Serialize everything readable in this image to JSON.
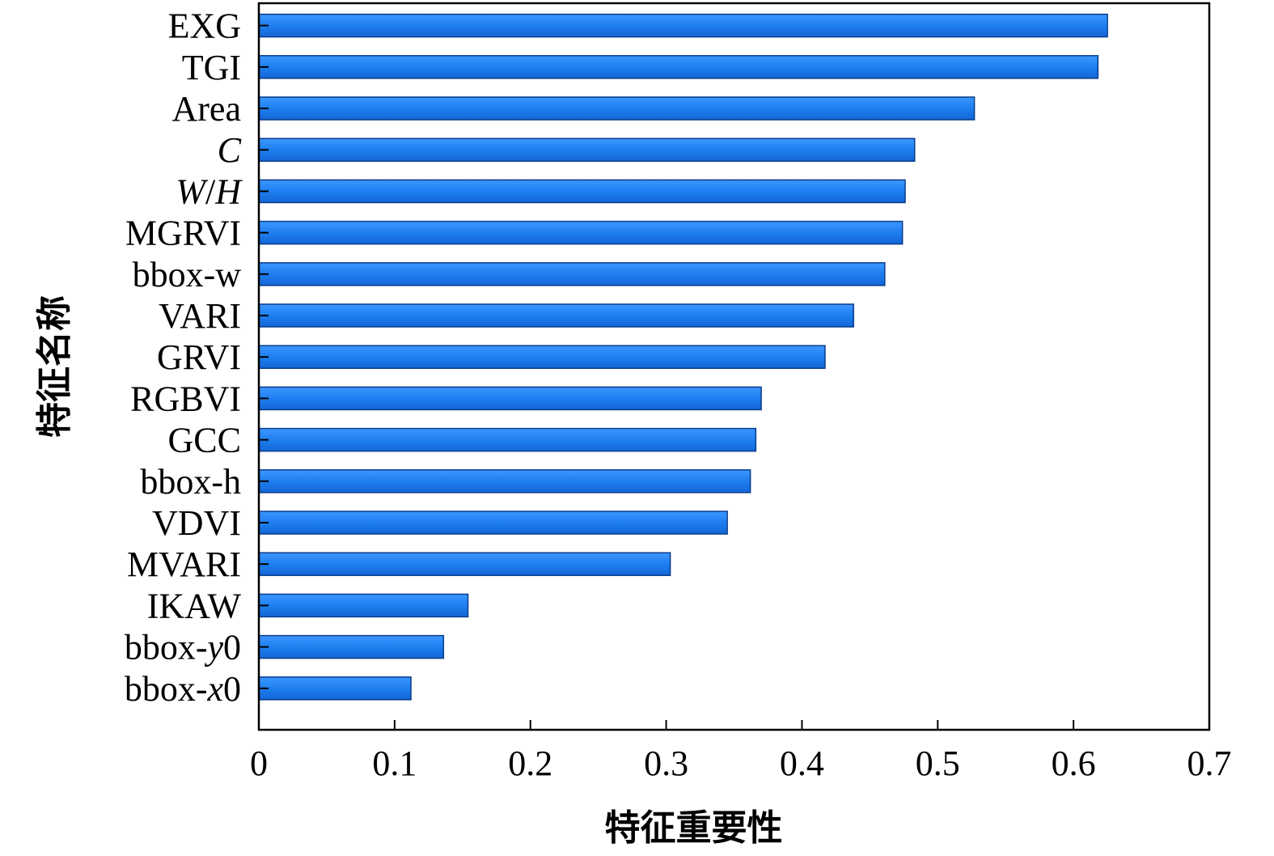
{
  "chart_data": {
    "type": "bar",
    "orientation": "horizontal",
    "categories": [
      "EXG",
      "TGI",
      "Area",
      "C",
      "W/H",
      "MGRVI",
      "bbox-w",
      "VARI",
      "GRVI",
      "RGBVI",
      "GCC",
      "bbox-h",
      "VDVI",
      "MVARI",
      "IKAW",
      "bbox-y0",
      "bbox-x0"
    ],
    "values": [
      0.625,
      0.618,
      0.527,
      0.483,
      0.476,
      0.474,
      0.461,
      0.438,
      0.417,
      0.37,
      0.366,
      0.362,
      0.345,
      0.303,
      0.154,
      0.136,
      0.112
    ],
    "xlabel": "特征重要性",
    "ylabel": "特征名称",
    "xlim": [
      0,
      0.7
    ],
    "xticks": [
      "0",
      "0.1",
      "0.2",
      "0.3",
      "0.4",
      "0.5",
      "0.6",
      "0.7"
    ],
    "bar_color": "#1e7ff0",
    "grid": false
  }
}
